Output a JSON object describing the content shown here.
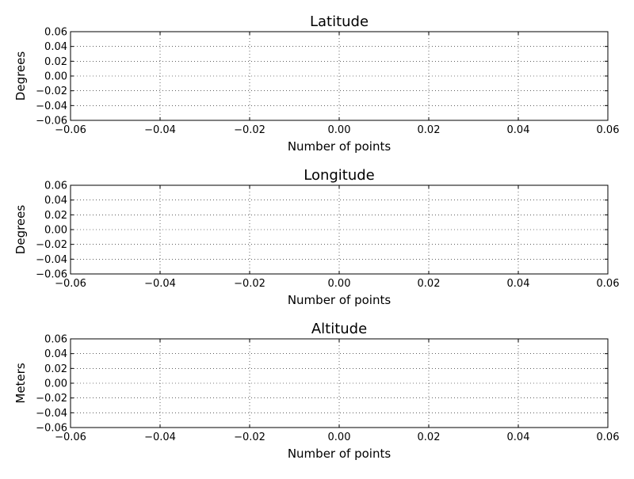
{
  "chart_data": [
    {
      "type": "line",
      "title": "Latitude",
      "xlabel": "Number of points",
      "ylabel": "Degrees",
      "x": [],
      "series": [],
      "xlim": [
        -0.06,
        0.06
      ],
      "ylim": [
        -0.06,
        0.06
      ],
      "xticks": [
        -0.06,
        -0.04,
        -0.02,
        0.0,
        0.02,
        0.04,
        0.06
      ],
      "yticks": [
        -0.06,
        -0.04,
        -0.02,
        0.0,
        0.02,
        0.04,
        0.06
      ],
      "xtick_labels": [
        "−0.06",
        "−0.04",
        "−0.02",
        "0.00",
        "0.02",
        "0.04",
        "0.06"
      ],
      "ytick_labels": [
        "−0.06",
        "−0.04",
        "−0.02",
        "0.00",
        "0.02",
        "0.04",
        "0.06"
      ],
      "grid": true
    },
    {
      "type": "line",
      "title": "Longitude",
      "xlabel": "Number of points",
      "ylabel": "Degrees",
      "x": [],
      "series": [],
      "xlim": [
        -0.06,
        0.06
      ],
      "ylim": [
        -0.06,
        0.06
      ],
      "xticks": [
        -0.06,
        -0.04,
        -0.02,
        0.0,
        0.02,
        0.04,
        0.06
      ],
      "yticks": [
        -0.06,
        -0.04,
        -0.02,
        0.0,
        0.02,
        0.04,
        0.06
      ],
      "xtick_labels": [
        "−0.06",
        "−0.04",
        "−0.02",
        "0.00",
        "0.02",
        "0.04",
        "0.06"
      ],
      "ytick_labels": [
        "−0.06",
        "−0.04",
        "−0.02",
        "0.00",
        "0.02",
        "0.04",
        "0.06"
      ],
      "grid": true
    },
    {
      "type": "line",
      "title": "Altitude",
      "xlabel": "Number of points",
      "ylabel": "Meters",
      "x": [],
      "series": [],
      "xlim": [
        -0.06,
        0.06
      ],
      "ylim": [
        -0.06,
        0.06
      ],
      "xticks": [
        -0.06,
        -0.04,
        -0.02,
        0.0,
        0.02,
        0.04,
        0.06
      ],
      "yticks": [
        -0.06,
        -0.04,
        -0.02,
        0.0,
        0.02,
        0.04,
        0.06
      ],
      "xtick_labels": [
        "−0.06",
        "−0.04",
        "−0.02",
        "0.00",
        "0.02",
        "0.04",
        "0.06"
      ],
      "ytick_labels": [
        "−0.06",
        "−0.04",
        "−0.02",
        "0.00",
        "0.02",
        "0.04",
        "0.06"
      ],
      "grid": true
    }
  ]
}
